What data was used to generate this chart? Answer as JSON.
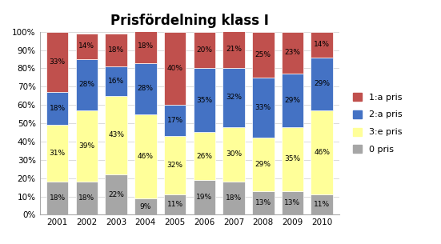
{
  "title": "Prisfördelning klass I",
  "years": [
    "2001",
    "2002",
    "2003",
    "2004",
    "2005",
    "2006",
    "2007",
    "2008",
    "2009",
    "2010"
  ],
  "zero_pris": [
    18,
    18,
    22,
    9,
    11,
    19,
    18,
    13,
    13,
    11
  ],
  "tre_pris": [
    31,
    39,
    43,
    46,
    32,
    26,
    30,
    29,
    35,
    46
  ],
  "tva_pris": [
    18,
    28,
    16,
    28,
    17,
    35,
    32,
    33,
    29,
    29
  ],
  "ett_pris": [
    33,
    14,
    18,
    18,
    40,
    20,
    21,
    25,
    23,
    14
  ],
  "colors": {
    "ett_pris": "#C0504D",
    "tva_pris": "#4472C4",
    "tre_pris": "#FFFF99",
    "zero_pris": "#A6A6A6"
  },
  "legend_labels": [
    "1:a pris",
    "2:a pris",
    "3:e pris",
    "0 pris"
  ],
  "ylim": [
    0,
    100
  ],
  "bar_width": 0.75,
  "title_fontsize": 12,
  "label_fontsize": 6.5
}
